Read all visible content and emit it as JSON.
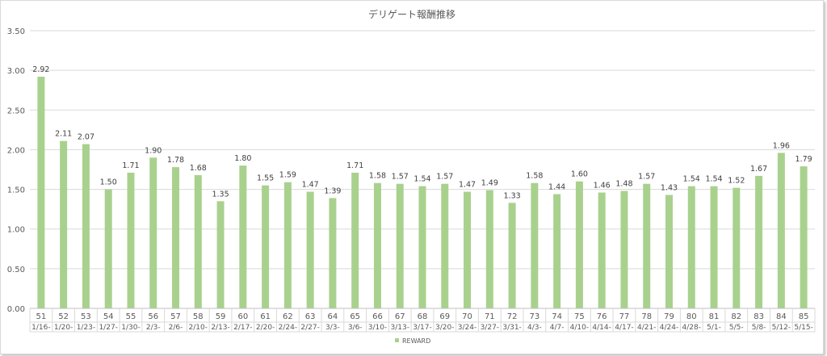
{
  "chart_data": {
    "type": "bar",
    "title": "デリゲート報酬推移",
    "xlabel": "",
    "ylabel": "",
    "ylim": [
      0,
      3.5
    ],
    "y_ticks": [
      "0.00",
      "0.50",
      "1.00",
      "1.50",
      "2.00",
      "2.50",
      "3.00",
      "3.50"
    ],
    "grid": true,
    "legend_position": "bottom",
    "bar_color": "#a9d18e",
    "categories": [
      {
        "num": "51",
        "date": "1/16-"
      },
      {
        "num": "52",
        "date": "1/20-"
      },
      {
        "num": "53",
        "date": "1/23-"
      },
      {
        "num": "54",
        "date": "1/27-"
      },
      {
        "num": "55",
        "date": "1/30-"
      },
      {
        "num": "56",
        "date": "2/3-"
      },
      {
        "num": "57",
        "date": "2/6-"
      },
      {
        "num": "58",
        "date": "2/10-"
      },
      {
        "num": "59",
        "date": "2/13-"
      },
      {
        "num": "60",
        "date": "2/17-"
      },
      {
        "num": "61",
        "date": "2/20-"
      },
      {
        "num": "62",
        "date": "2/24-"
      },
      {
        "num": "63",
        "date": "2/27-"
      },
      {
        "num": "64",
        "date": "3/3-"
      },
      {
        "num": "65",
        "date": "3/6-"
      },
      {
        "num": "66",
        "date": "3/10-"
      },
      {
        "num": "67",
        "date": "3/13-"
      },
      {
        "num": "68",
        "date": "3/17-"
      },
      {
        "num": "69",
        "date": "3/20-"
      },
      {
        "num": "70",
        "date": "3/24-"
      },
      {
        "num": "71",
        "date": "3/27-"
      },
      {
        "num": "72",
        "date": "3/31-"
      },
      {
        "num": "73",
        "date": "4/3-"
      },
      {
        "num": "74",
        "date": "4/7-"
      },
      {
        "num": "75",
        "date": "4/10-"
      },
      {
        "num": "76",
        "date": "4/14-"
      },
      {
        "num": "77",
        "date": "4/17-"
      },
      {
        "num": "78",
        "date": "4/21-"
      },
      {
        "num": "79",
        "date": "4/24-"
      },
      {
        "num": "80",
        "date": "4/28-"
      },
      {
        "num": "81",
        "date": "5/1-"
      },
      {
        "num": "82",
        "date": "5/5-"
      },
      {
        "num": "83",
        "date": "5/8-"
      },
      {
        "num": "84",
        "date": "5/12-"
      },
      {
        "num": "85",
        "date": "5/15-"
      }
    ],
    "series": [
      {
        "name": "REWARD",
        "values": [
          2.92,
          2.11,
          2.07,
          1.5,
          1.71,
          1.9,
          1.78,
          1.68,
          1.35,
          1.8,
          1.55,
          1.59,
          1.47,
          1.39,
          1.71,
          1.58,
          1.57,
          1.54,
          1.57,
          1.47,
          1.49,
          1.33,
          1.58,
          1.44,
          1.6,
          1.46,
          1.48,
          1.57,
          1.43,
          1.54,
          1.54,
          1.52,
          1.67,
          1.96,
          1.79
        ],
        "labels": [
          "2.92",
          "2.11",
          "2.07",
          "1.50",
          "1.71",
          "1.90",
          "1.78",
          "1.68",
          "1.35",
          "1.80",
          "1.55",
          "1.59",
          "1.47",
          "1.39",
          "1.71",
          "1.58",
          "1.57",
          "1.54",
          "1.57",
          "1.47",
          "1.49",
          "1.33",
          "1.58",
          "1.44",
          "1.60",
          "1.46",
          "1.48",
          "1.57",
          "1.43",
          "1.54",
          "1.54",
          "1.52",
          "1.67",
          "1.96",
          "1.79"
        ]
      }
    ]
  }
}
